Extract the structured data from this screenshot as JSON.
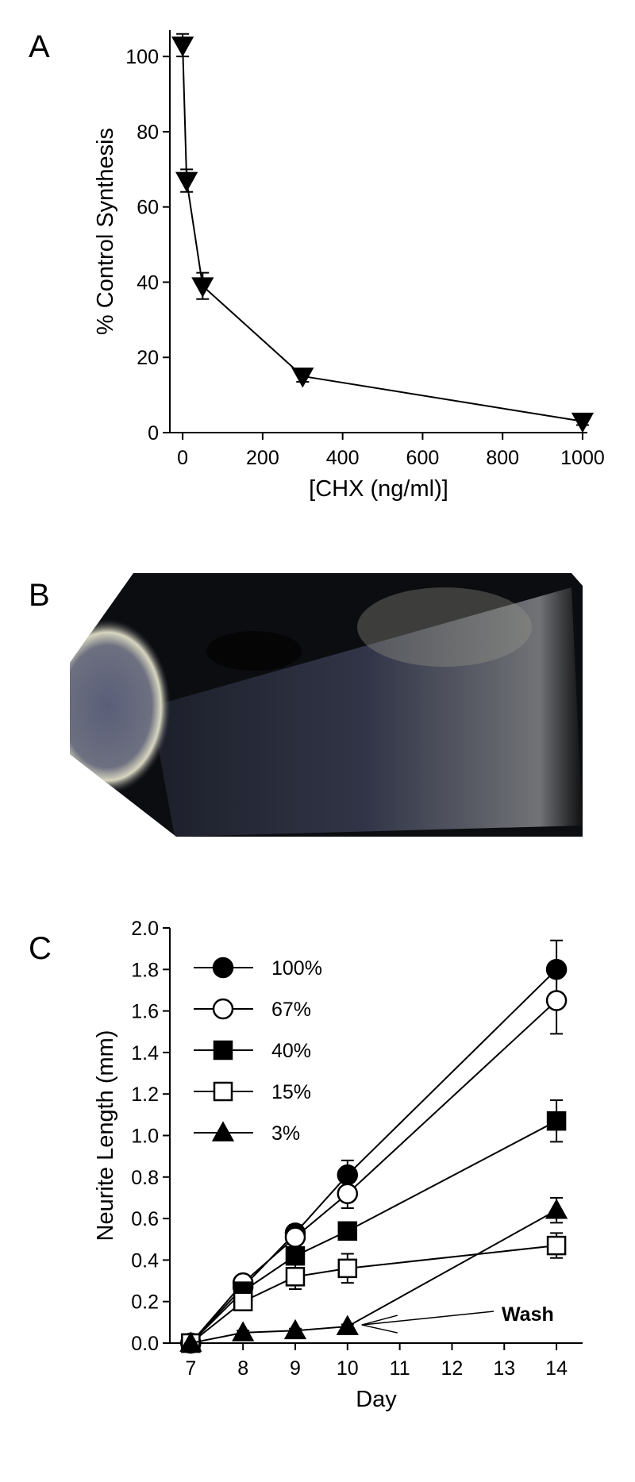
{
  "chart_data": [
    {
      "type": "line",
      "panel_label": "A",
      "ylabel": "% Control Synthesis",
      "xlabel": "[CHX (ng/ml)]",
      "x": [
        0,
        10,
        50,
        300,
        1000
      ],
      "values": [
        103,
        67,
        39,
        15,
        3
      ],
      "errors": [
        3,
        3,
        3.5,
        1.5,
        1
      ],
      "marker": "triangle-down",
      "fill": "filled",
      "color": "#000000",
      "xlim": [
        -32,
        1012
      ],
      "ylim": [
        0,
        107
      ],
      "xticks": [
        0,
        200,
        400,
        600,
        800,
        1000
      ],
      "yticks": [
        0,
        20,
        40,
        60,
        80,
        100
      ]
    },
    {
      "type": "line",
      "panel_label": "C",
      "ylabel": "Neurite Length (mm)",
      "xlabel": "Day",
      "x": [
        7,
        8,
        9,
        10,
        14
      ],
      "series": [
        {
          "name": "100%",
          "color": "#000000",
          "marker": "circle",
          "fill": "filled",
          "values": [
            0,
            0.27,
            0.53,
            0.81,
            1.8
          ],
          "errors": [
            0.02,
            0.03,
            0.04,
            0.07,
            0.14
          ]
        },
        {
          "name": "67%",
          "color": "#000000",
          "marker": "circle",
          "fill": "open",
          "values": [
            0,
            0.29,
            0.51,
            0.72,
            1.65
          ],
          "errors": [
            0.01,
            0.02,
            0.03,
            0.07,
            0.16
          ]
        },
        {
          "name": "40%",
          "color": "#000000",
          "marker": "square",
          "fill": "filled",
          "values": [
            0,
            0.25,
            0.42,
            0.54,
            1.07
          ],
          "errors": [
            0.01,
            0.03,
            0.03,
            0.03,
            0.1
          ]
        },
        {
          "name": "15%",
          "color": "#000000",
          "marker": "square",
          "fill": "open",
          "values": [
            0,
            0.2,
            0.32,
            0.36,
            0.47
          ],
          "errors": [
            0.01,
            0.02,
            0.06,
            0.07,
            0.06
          ]
        },
        {
          "name": "3%",
          "color": "#000000",
          "marker": "triangle-up",
          "fill": "filled",
          "values": [
            0,
            0.05,
            0.06,
            0.08,
            0.64
          ],
          "errors": [
            0,
            0.01,
            0.01,
            0.01,
            0.06
          ]
        }
      ],
      "annotation": "Wash",
      "xlim": [
        6.6,
        14.5
      ],
      "ylim": [
        0,
        2.0
      ],
      "xticks": [
        7,
        8,
        9,
        10,
        11,
        12,
        13,
        14
      ],
      "yticks": [
        {
          "value": 0,
          "label": "0.0"
        },
        0.2,
        0.4,
        0.6,
        0.8,
        {
          "value": 1,
          "label": "1.0"
        },
        1.2,
        1.4,
        1.6,
        1.8,
        {
          "value": 2,
          "label": "2.0"
        }
      ]
    }
  ],
  "image_panel": {
    "panel_label": "B"
  }
}
